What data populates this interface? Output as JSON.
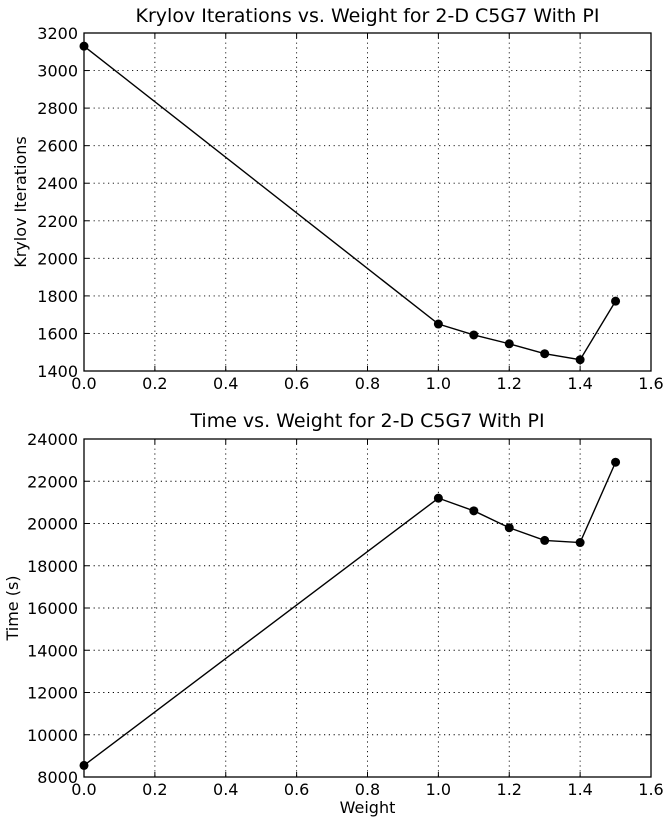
{
  "chart_data": [
    {
      "type": "line",
      "title": "Krylov Iterations vs. Weight for 2-D C5G7 With PI",
      "xlabel": "",
      "ylabel": "Krylov Iterations",
      "xlim": [
        0.0,
        1.6
      ],
      "ylim": [
        1400,
        3200
      ],
      "xticks": [
        "0.0",
        "0.2",
        "0.4",
        "0.6",
        "0.8",
        "1.0",
        "1.2",
        "1.4",
        "1.6"
      ],
      "yticks": [
        "1400",
        "1600",
        "1800",
        "2000",
        "2200",
        "2400",
        "2600",
        "2800",
        "3000",
        "3200"
      ],
      "grid": true,
      "series": [
        {
          "x": [
            0.0,
            1.0,
            1.1,
            1.2,
            1.3,
            1.4,
            1.5
          ],
          "y": [
            3130,
            1650,
            1592,
            1545,
            1492,
            1460,
            1772
          ],
          "color": "#000000",
          "marker": "circle"
        }
      ]
    },
    {
      "type": "line",
      "title": "Time vs. Weight for 2-D C5G7 With PI",
      "xlabel": "Weight",
      "ylabel": "Time (s)",
      "xlim": [
        0.0,
        1.6
      ],
      "ylim": [
        8000,
        24000
      ],
      "xticks": [
        "0.0",
        "0.2",
        "0.4",
        "0.6",
        "0.8",
        "1.0",
        "1.2",
        "1.4",
        "1.6"
      ],
      "yticks": [
        "8000",
        "10000",
        "12000",
        "14000",
        "16000",
        "18000",
        "20000",
        "22000",
        "24000"
      ],
      "grid": true,
      "series": [
        {
          "x": [
            0.0,
            1.0,
            1.1,
            1.2,
            1.3,
            1.4,
            1.5
          ],
          "y": [
            8550,
            21200,
            20600,
            19800,
            19200,
            19100,
            22900
          ],
          "color": "#000000",
          "marker": "circle"
        }
      ]
    }
  ]
}
